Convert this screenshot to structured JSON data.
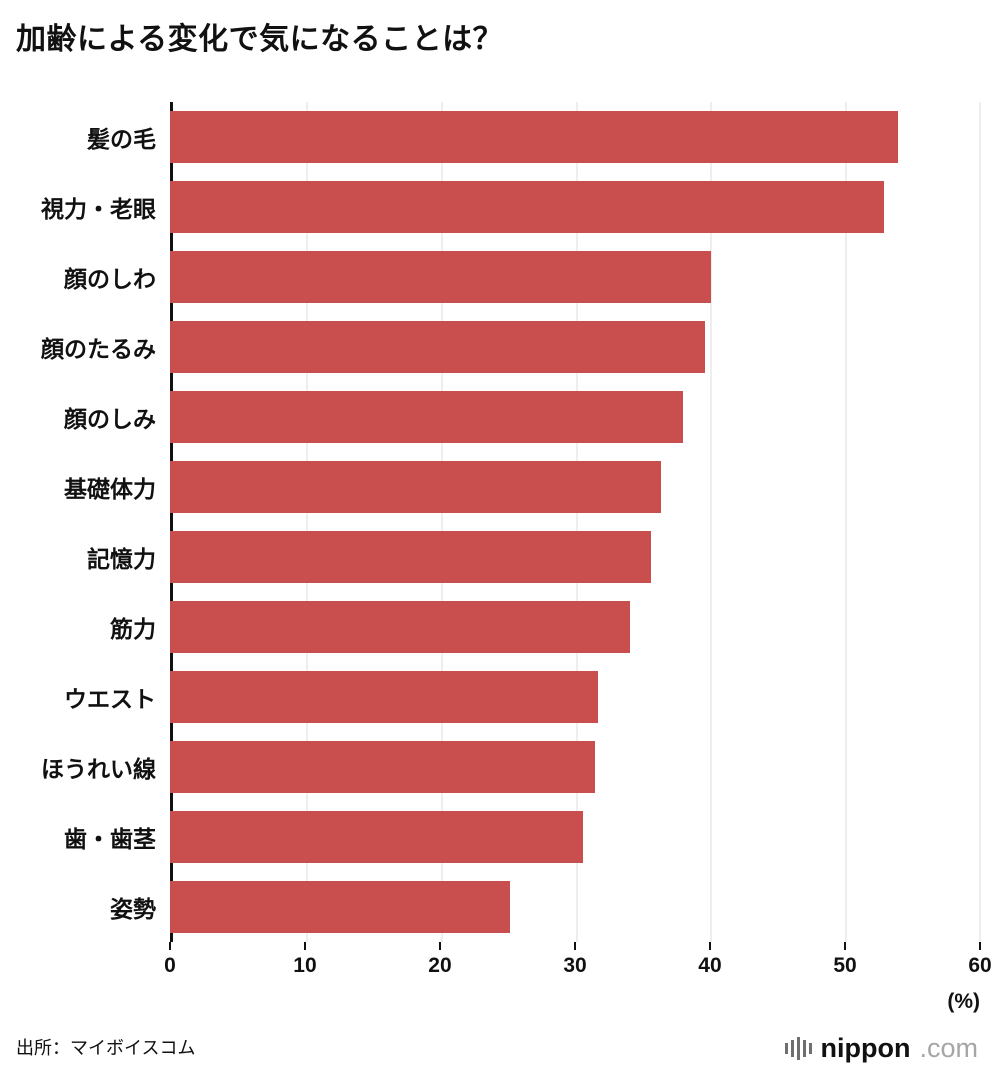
{
  "title": "加齢による変化で気になることは？",
  "source": "出所：マイボイスコム",
  "logo": {
    "icon": "soundbars-icon",
    "name": "nippon",
    "domain": ".com"
  },
  "chart_data": {
    "type": "bar",
    "orientation": "horizontal",
    "title": "加齢による変化で気になることは？",
    "categories": [
      "髪の毛",
      "視力・老眼",
      "顔のしわ",
      "顔のたるみ",
      "顔のしみ",
      "基礎体力",
      "記憶力",
      "筋力",
      "ウエスト",
      "ほうれい線",
      "歯・歯茎",
      "姿勢"
    ],
    "values": [
      53.9,
      52.9,
      40.1,
      39.6,
      38.0,
      36.4,
      35.6,
      34.1,
      31.7,
      31.5,
      30.6,
      25.2
    ],
    "xlim": [
      0,
      60
    ],
    "xticks": [
      0,
      10,
      20,
      30,
      40,
      50,
      60
    ],
    "xunit": "(%)",
    "bar_color": "#c94f4f",
    "grid": true,
    "gridline_color": "#dedede",
    "legend": "none"
  }
}
